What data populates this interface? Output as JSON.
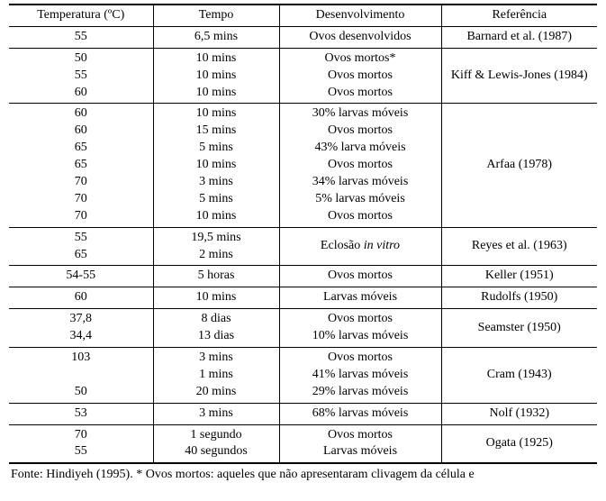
{
  "headers": [
    "Temperatura (ºC)",
    "Tempo",
    "Desenvolvimento",
    "Referência"
  ],
  "rows": [
    {
      "temp": [
        "55"
      ],
      "tempo": [
        "6,5 mins"
      ],
      "dev": [
        "Ovos desenvolvidos"
      ],
      "ref": "Barnard et al. (1987)"
    },
    {
      "temp": [
        "50",
        "55",
        "60"
      ],
      "tempo": [
        "10 mins",
        "10 mins",
        "10 mins"
      ],
      "dev": [
        "Ovos mortos*",
        "Ovos mortos",
        "Ovos mortos"
      ],
      "ref": "Kiff & Lewis-Jones (1984)"
    },
    {
      "temp": [
        "60",
        "60",
        "65",
        "65",
        "70",
        "70",
        "70"
      ],
      "tempo": [
        "10 mins",
        "15 mins",
        "5 mins",
        "10 mins",
        "3 mins",
        "5 mins",
        "10 mins"
      ],
      "dev": [
        "30% larvas móveis",
        "Ovos mortos",
        "43% larva móveis",
        "Ovos mortos",
        "34% larvas móveis",
        "5% larvas móveis",
        "Ovos mortos"
      ],
      "ref": "Arfaa (1978)"
    },
    {
      "temp": [
        "55",
        "65"
      ],
      "tempo": [
        "19,5 mins",
        "2 mins"
      ],
      "dev_html": "Eclosão <em>in vitro</em>",
      "ref": "Reyes et al. (1963)"
    },
    {
      "temp": [
        "54-55"
      ],
      "tempo": [
        "5 horas"
      ],
      "dev": [
        "Ovos mortos"
      ],
      "ref": "Keller (1951)"
    },
    {
      "temp": [
        "60"
      ],
      "tempo": [
        "10 mins"
      ],
      "dev": [
        "Larvas móveis"
      ],
      "ref": "Rudolfs (1950)"
    },
    {
      "temp": [
        "37,8",
        "34,4"
      ],
      "tempo": [
        "8 dias",
        "13 dias"
      ],
      "dev": [
        "Ovos mortos",
        "10% larvas móveis"
      ],
      "ref": "Seamster (1950)"
    },
    {
      "temp": [
        "103",
        "",
        "50"
      ],
      "tempo": [
        "3 mins",
        "1 mins",
        "20 mins"
      ],
      "dev": [
        "Ovos mortos",
        "41% larvas móveis",
        "29% larvas móveis"
      ],
      "ref": "Cram (1943)"
    },
    {
      "temp": [
        "53"
      ],
      "tempo": [
        "3 mins"
      ],
      "dev": [
        "68% larvas móveis"
      ],
      "ref": "Nolf (1932)"
    },
    {
      "temp": [
        "70",
        "55"
      ],
      "tempo": [
        "1 segundo",
        "40 segundos"
      ],
      "dev": [
        "Ovos mortos",
        "Larvas móveis"
      ],
      "ref": "Ogata (1925)"
    }
  ],
  "footnote": "Fonte: Hindiyeh (1995). * Ovos mortos: aqueles que não apresentaram clivagem da célula e"
}
